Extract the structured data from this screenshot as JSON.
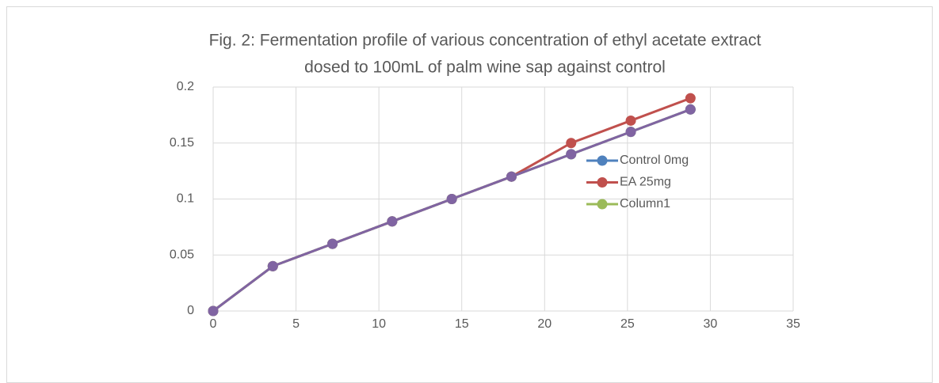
{
  "chart_data": {
    "type": "line",
    "title": [
      "Fig. 2: Fermentation profile of various concentration of ethyl acetate extract",
      "dosed to 100mL of palm wine sap against control"
    ],
    "x": [
      0,
      3.6,
      7.2,
      10.8,
      14.4,
      18,
      21.6,
      25.2,
      28.8
    ],
    "series": [
      {
        "name": "Control 0mg",
        "color": "#4f81bd",
        "values": [
          0,
          0.04,
          0.06,
          0.08,
          0.1,
          0.12,
          0.14,
          0.16,
          0.18
        ]
      },
      {
        "name": "EA 25mg",
        "color": "#c0504d",
        "values": [
          0,
          0.04,
          0.06,
          0.08,
          0.1,
          0.12,
          0.15,
          0.17,
          0.19
        ]
      },
      {
        "name": "Column1",
        "color": "#9bbb59",
        "values": [
          0,
          0.04,
          0.06,
          0.08,
          0.1,
          0.12,
          0.14,
          0.16,
          0.18
        ]
      },
      {
        "color": "#8064a2",
        "values": [
          0,
          0.04,
          0.06,
          0.08,
          0.1,
          0.12,
          0.14,
          0.16,
          0.18
        ]
      }
    ],
    "xlim": [
      0,
      35
    ],
    "xticks": [
      0,
      5,
      10,
      15,
      20,
      25,
      30,
      35
    ],
    "ylim": [
      0,
      0.2
    ],
    "yticks": [
      0,
      0.05,
      0.1,
      0.15,
      0.2
    ],
    "grid": true
  }
}
